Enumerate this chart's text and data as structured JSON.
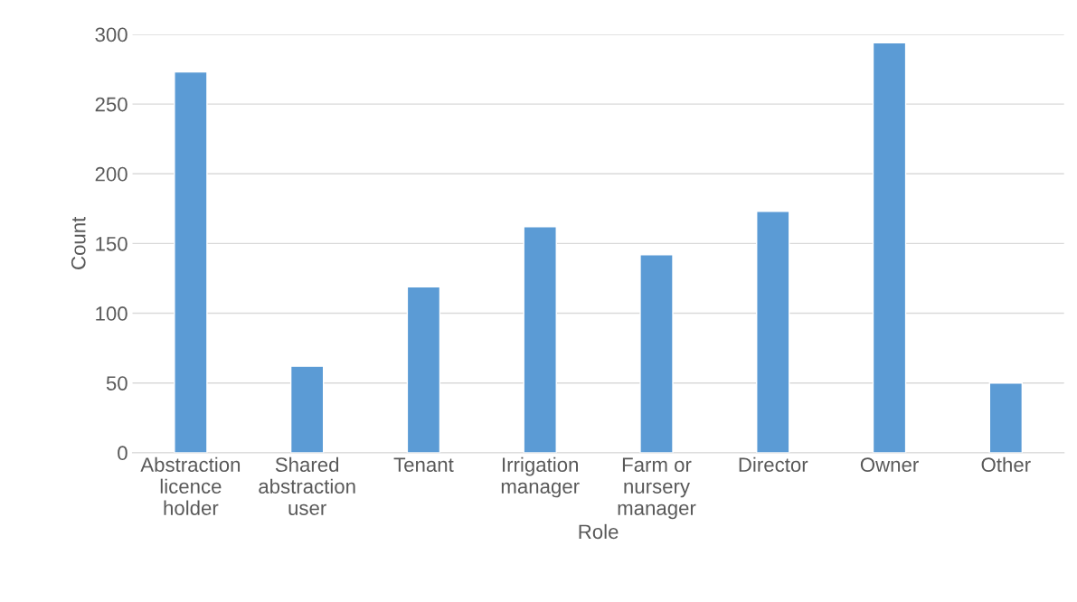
{
  "chart_data": {
    "type": "bar",
    "xlabel": "Role",
    "ylabel": "Count",
    "categories": [
      "Abstraction licence holder",
      "Shared abstraction user",
      "Tenant",
      "Irrigation manager",
      "Farm or nursery manager",
      "Director",
      "Owner",
      "Other"
    ],
    "values": [
      273,
      62,
      119,
      162,
      142,
      173,
      294,
      50
    ],
    "color": "#5b9bd5",
    "ylim": [
      0,
      300
    ],
    "yticks": [
      0,
      50,
      100,
      150,
      200,
      250,
      300
    ],
    "grid": "y",
    "legend": false
  }
}
